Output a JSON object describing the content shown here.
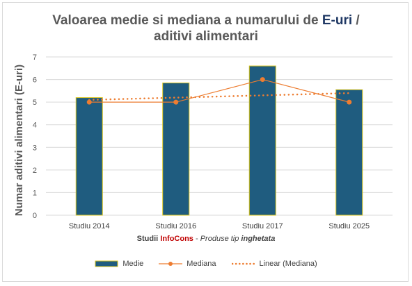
{
  "title": {
    "part1": "Valoarea medie si mediana a numarului de ",
    "highlight": "E-uri",
    "part2": " /",
    "line2": "aditivi alimentari"
  },
  "axis": {
    "ylabel": "Numar aditivi alimentari (E-uri)",
    "xlabel_prefix": "Studii ",
    "xlabel_brand": "InfoCons",
    "xlabel_sep": " - ",
    "xlabel_italic1": "Produse tip ",
    "xlabel_italic2": "inghetata"
  },
  "legend": {
    "bar": "Medie",
    "line": "Mediana",
    "trend": "Linear (Mediana)"
  },
  "colors": {
    "bar_fill": "#1f5c7f",
    "bar_border": "#d6c21a",
    "line": "#ed7d31",
    "title_highlight": "#1f3864",
    "brand": "#c00000"
  },
  "chart_data": {
    "type": "bar",
    "categories": [
      "Studiu 2014",
      "Studiu 2016",
      "Studiu 2017",
      "Studiu 2025"
    ],
    "series": [
      {
        "name": "Medie",
        "type": "bar",
        "values": [
          5.2,
          5.85,
          6.6,
          5.55
        ]
      },
      {
        "name": "Mediana",
        "type": "line",
        "values": [
          5,
          5,
          6,
          5
        ]
      },
      {
        "name": "Linear (Mediana)",
        "type": "trendline",
        "values": [
          5.1,
          5.2,
          5.3,
          5.4
        ]
      }
    ],
    "yticks": [
      0,
      1,
      2,
      3,
      4,
      5,
      6,
      7
    ],
    "ylim": [
      0,
      7
    ],
    "grid": true,
    "legend": "bottom"
  }
}
